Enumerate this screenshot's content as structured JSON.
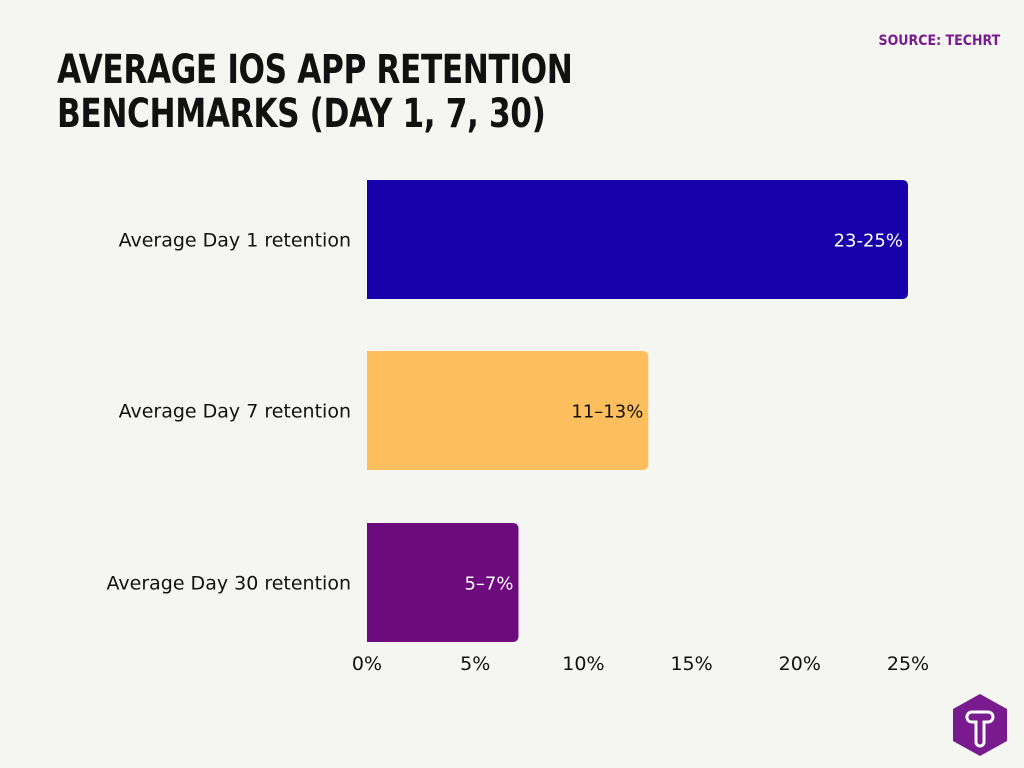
{
  "source": "SOURCE: TECHRT",
  "chart_data": {
    "type": "bar",
    "orientation": "horizontal",
    "title": "AVERAGE IOS APP RETENTION BENCHMARKS (DAY 1, 7, 30)",
    "categories": [
      "Average Day 1 retention",
      "Average Day 7 retention",
      "Average Day 30 retention"
    ],
    "values": [
      25,
      13,
      7
    ],
    "data_labels": [
      "23-25%",
      "11–13%",
      "5–7%"
    ],
    "colors": [
      "#1800aa",
      "#fdbe5d",
      "#6d0a7e"
    ],
    "label_colors": [
      "#ffffff",
      "#111111",
      "#ffffff"
    ],
    "xlim": [
      0,
      25
    ],
    "xticks": [
      "0%",
      "5%",
      "10%",
      "15%",
      "20%",
      "25%"
    ],
    "grid": false,
    "xlabel": "",
    "ylabel": ""
  },
  "logo": {
    "name": "techrt-logo",
    "letter": "T",
    "color": "#7a1a8f"
  }
}
